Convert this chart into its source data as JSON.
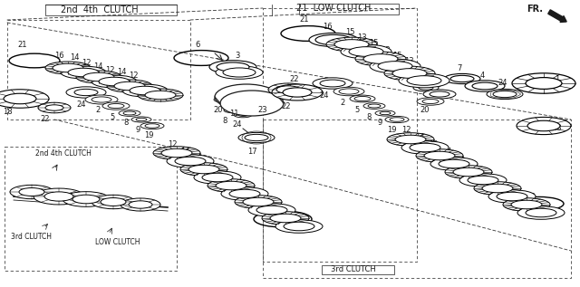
{
  "bg": "#f0f0f0",
  "lc": "#1a1a1a",
  "tc": "#1a1a1a",
  "figsize": [
    6.4,
    3.17
  ],
  "dpi": 100,
  "labels": {
    "top_left_box": "2nd 4th CLUTCH",
    "top_center_box": "21  LOW CLUTCH",
    "fr": "FR.",
    "bottom_left_2nd4th": "2nd 4th CLUTCH",
    "bottom_left_3rd": "3rd CLUTCH",
    "bottom_left_low": "LOW CLUTCH",
    "bottom_center_3rd": "3rd CLUTCH"
  }
}
